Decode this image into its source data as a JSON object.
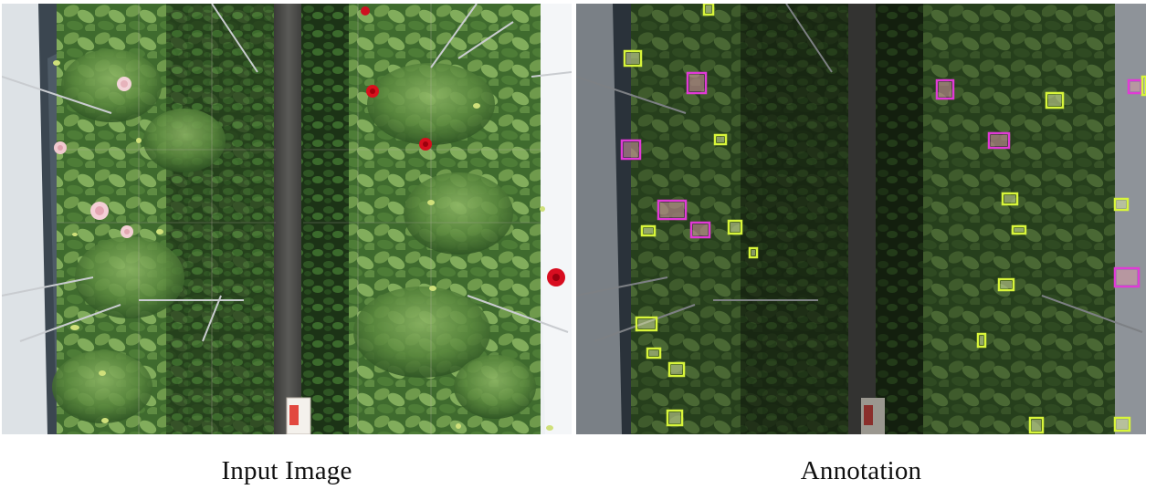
{
  "captions": {
    "left": "Input Image",
    "right": "Annotation"
  },
  "colors": {
    "bud_box": "#d8f53a",
    "flower_box": "#e13ad6",
    "foliage_dark": "#1e3a18",
    "foliage_light": "#6f9a4c",
    "path": "#4a4a48",
    "wall": "#f2f4f6"
  },
  "annotations": {
    "flowers": 9,
    "buds": 26
  }
}
